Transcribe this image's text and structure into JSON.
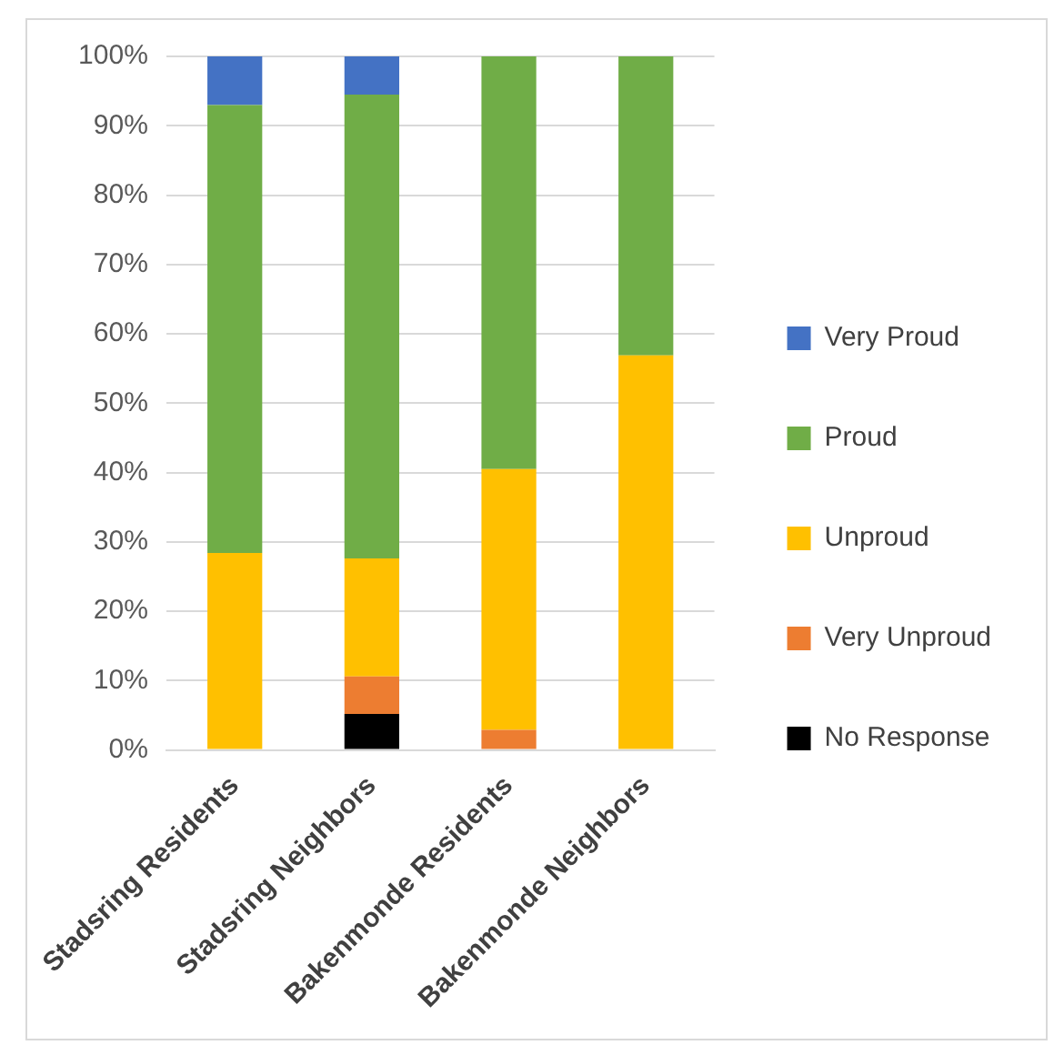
{
  "chart_data": {
    "type": "bar",
    "stacked": true,
    "categories": [
      "Stadsring Residents",
      "Stadsring Neighbors",
      "Bakenmonde Residents",
      "Bakenmonde Neighbors"
    ],
    "series": [
      {
        "name": "No Response",
        "color": "#000000",
        "values": [
          0,
          5.2,
          0,
          0
        ]
      },
      {
        "name": "Very Unproud",
        "color": "#ed7d31",
        "values": [
          0,
          5.4,
          2.9,
          0
        ]
      },
      {
        "name": "Unproud",
        "color": "#ffc000",
        "values": [
          28.4,
          17,
          37.6,
          56.9
        ]
      },
      {
        "name": "Proud",
        "color": "#70ad47",
        "values": [
          64.6,
          66.9,
          59.5,
          43.1
        ]
      },
      {
        "name": "Very Proud",
        "color": "#4472c4",
        "values": [
          7,
          5.5,
          0,
          0
        ]
      }
    ],
    "ylim": [
      0,
      100
    ],
    "yticks": [
      {
        "value": 0,
        "label": "0%"
      },
      {
        "value": 10,
        "label": "10%"
      },
      {
        "value": 20,
        "label": "20%"
      },
      {
        "value": 30,
        "label": "30%"
      },
      {
        "value": 40,
        "label": "40%"
      },
      {
        "value": 50,
        "label": "50%"
      },
      {
        "value": 60,
        "label": "60%"
      },
      {
        "value": 70,
        "label": "70%"
      },
      {
        "value": 80,
        "label": "80%"
      },
      {
        "value": 90,
        "label": "90%"
      },
      {
        "value": 100,
        "label": "100%"
      }
    ],
    "grid": "y",
    "legend": "right"
  }
}
